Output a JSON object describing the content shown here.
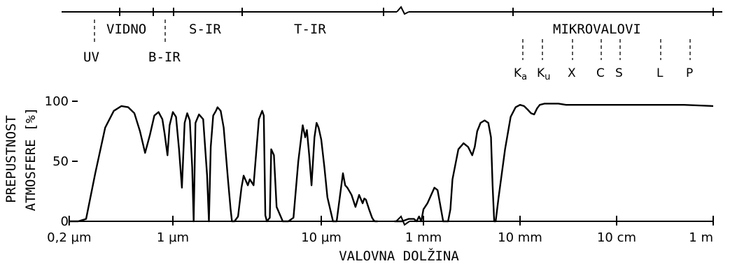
{
  "chart_data": {
    "type": "line",
    "title": "",
    "xlabel": "VALOVNA DOLŽINA",
    "ylabel_lines": [
      "PREPUSTNOST",
      "ATMOSFERE   [%]"
    ],
    "ylim": [
      0,
      100
    ],
    "y_ticks": [
      {
        "value": 0,
        "label": "0"
      },
      {
        "value": 50,
        "label": "50"
      },
      {
        "value": 100,
        "label": "100"
      }
    ],
    "x_scale": "log-wavelength (broken axis)",
    "x_ticks": [
      {
        "label": "0,2 µm",
        "value_m": 2e-07
      },
      {
        "label": "1 µm",
        "value_m": 1e-06
      },
      {
        "label": "10 µm",
        "value_m": 1e-05
      },
      {
        "label": "1 mm",
        "value_m": 0.001
      },
      {
        "label": "10 mm",
        "value_m": 0.01
      },
      {
        "label": "10 cm",
        "value_m": 0.1
      },
      {
        "label": "1 m",
        "value_m": 1
      }
    ],
    "band_labels": [
      "UV",
      "VIDNO",
      "B-IR",
      "S-IR",
      "T-IR",
      "MIKROVALOVI"
    ],
    "microwave_bands": [
      "Ka",
      "Ku",
      "X",
      "C",
      "S",
      "L",
      "P"
    ],
    "optical_ir_series": {
      "name": "",
      "x_um": [
        0.2,
        0.23,
        0.26,
        0.3,
        0.35,
        0.4,
        0.45,
        0.5,
        0.55,
        0.6,
        0.65,
        0.7,
        0.75,
        0.8,
        0.85,
        0.88,
        0.92,
        0.95,
        1.0,
        1.05,
        1.1,
        1.15,
        1.2,
        1.25,
        1.3,
        1.35,
        1.38,
        1.42,
        1.5,
        1.6,
        1.7,
        1.75,
        1.8,
        1.87,
        1.95,
        2.0,
        2.1,
        2.2,
        2.35,
        2.45,
        2.5,
        2.6,
        2.75,
        2.9,
        3.0,
        3.2,
        3.3,
        3.5,
        3.8,
        4.0,
        4.1,
        4.2,
        4.3,
        4.5,
        4.6,
        4.8,
        5.0,
        5.5,
        6.0,
        6.5,
        7.0,
        7.5,
        7.8,
        8.0,
        8.3,
        8.6,
        9.0,
        9.3,
        9.6,
        10.0,
        10.5,
        11.0,
        12.0,
        12.7,
        13.5,
        14.0,
        14.5,
        15.0,
        16.0,
        17.0,
        18.0,
        19.0,
        19.5,
        20.0,
        21.0,
        22.0,
        22.5,
        23.0,
        24.0
      ],
      "transmission": [
        0,
        0,
        2,
        40,
        78,
        92,
        96,
        95,
        90,
        75,
        57,
        72,
        88,
        91,
        85,
        73,
        55,
        80,
        91,
        87,
        60,
        28,
        82,
        90,
        84,
        45,
        0,
        82,
        89,
        85,
        38,
        0,
        62,
        88,
        92,
        95,
        92,
        78,
        35,
        10,
        0,
        0,
        4,
        28,
        38,
        30,
        35,
        30,
        85,
        92,
        88,
        5,
        0,
        3,
        60,
        55,
        12,
        0,
        0,
        3,
        50,
        80,
        70,
        76,
        55,
        30,
        70,
        82,
        78,
        68,
        45,
        20,
        0,
        0,
        25,
        40,
        30,
        28,
        22,
        12,
        22,
        15,
        19,
        18,
        10,
        3,
        1,
        0,
        0
      ]
    },
    "radio_series": {
      "name": "",
      "x_mm": [
        0.5,
        0.6,
        0.7,
        0.8,
        0.85,
        0.9,
        0.95,
        1.0,
        1.1,
        1.3,
        1.4,
        1.6,
        1.8,
        1.9,
        2.0,
        2.3,
        2.6,
        2.9,
        3.2,
        3.4,
        3.6,
        3.9,
        4.3,
        4.7,
        5.0,
        5.2,
        5.4,
        5.6,
        6.0,
        7.0,
        8.0,
        9.0,
        10,
        11,
        12,
        13,
        14,
        15,
        16,
        18,
        20,
        25,
        30,
        50,
        100,
        200,
        500,
        1000
      ],
      "transmission": [
        0,
        0,
        2,
        2,
        0,
        4,
        0,
        10,
        15,
        28,
        26,
        0,
        0,
        10,
        35,
        60,
        65,
        62,
        55,
        62,
        75,
        82,
        84,
        82,
        70,
        30,
        0,
        0,
        20,
        60,
        87,
        95,
        97,
        96,
        93,
        90,
        89,
        94,
        97,
        98,
        98,
        98,
        97,
        97,
        97,
        97,
        97,
        96
      ]
    }
  }
}
